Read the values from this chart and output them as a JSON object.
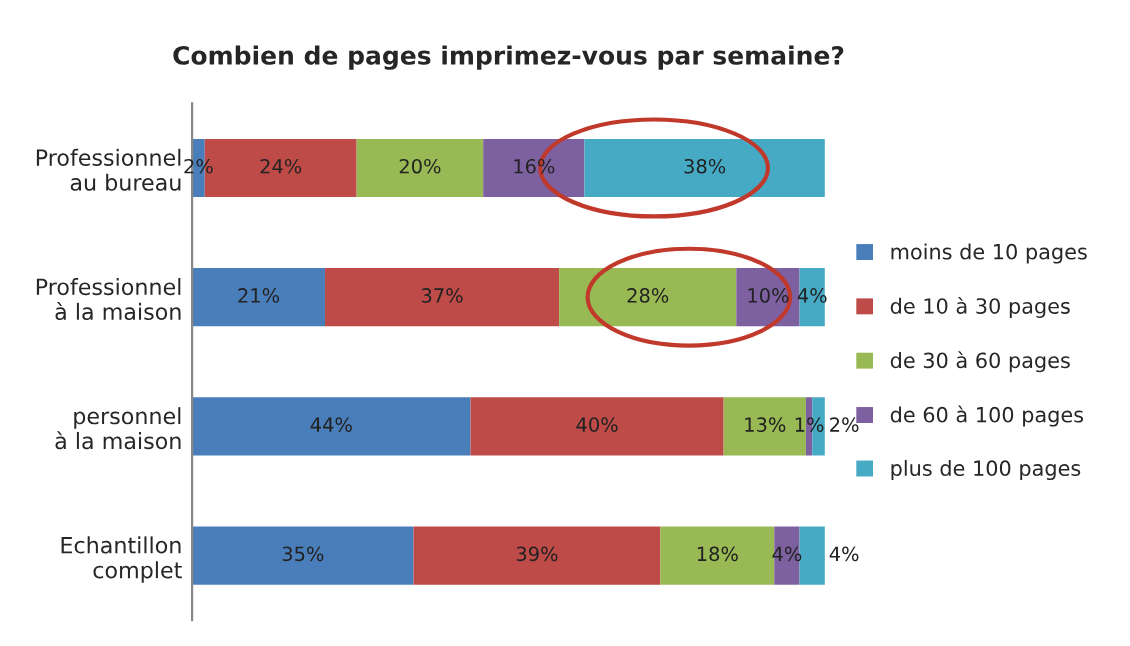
{
  "chart_data": {
    "type": "bar",
    "orientation": "horizontal",
    "stacked": true,
    "title": "Combien de pages imprimez-vous par semaine?",
    "categories": [
      "Professionnel\nau bureau",
      "Professionnel\nà la maison",
      "personnel\nà la maison",
      "Echantillon\ncomplet"
    ],
    "series": [
      {
        "name": "moins de 10 pages",
        "color": "#4a7ebb",
        "values": [
          2,
          21,
          44,
          35
        ],
        "value_labels": [
          "2%",
          "21%",
          "44%",
          "35%"
        ]
      },
      {
        "name": "de 10 à 30 pages",
        "color": "#be4b48",
        "values": [
          24,
          37,
          40,
          39
        ],
        "value_labels": [
          "24%",
          "37%",
          "40%",
          "39%"
        ]
      },
      {
        "name": "de 30 à 60 pages",
        "color": "#98b954",
        "values": [
          20,
          28,
          13,
          18
        ],
        "value_labels": [
          "20%",
          "28%",
          "13%",
          "18%"
        ]
      },
      {
        "name": "de 60 à 100 pages",
        "color": "#7d60a0",
        "values": [
          16,
          10,
          1,
          4
        ],
        "value_labels": [
          "16%",
          "10%",
          "1%",
          "4%"
        ]
      },
      {
        "name": "plus de 100 pages",
        "color": "#46aac5",
        "values": [
          38,
          4,
          2,
          4
        ],
        "value_labels": [
          "38%",
          "4%",
          "2%",
          "4%"
        ]
      }
    ],
    "xlim": [
      0,
      100
    ],
    "legend": "right",
    "grid": false
  }
}
